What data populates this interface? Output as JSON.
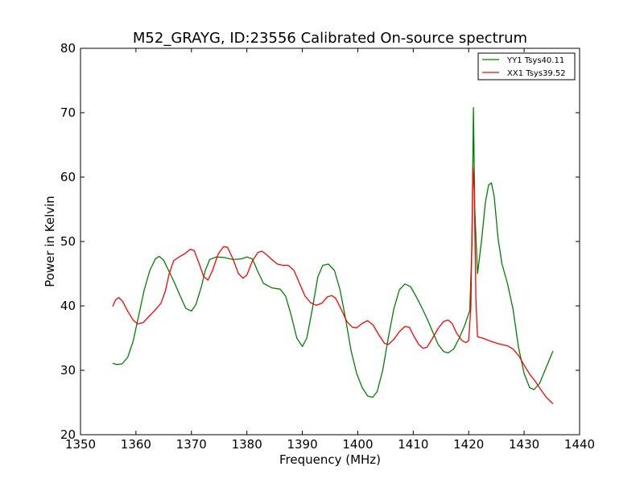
{
  "chart_data": {
    "type": "line",
    "title": "M52_GRAYG, ID:23556 Calibrated On-source spectrum",
    "xlabel": "Frequency (MHz)",
    "ylabel": "Power in Kelvin",
    "xlim": [
      1350,
      1440
    ],
    "ylim": [
      20,
      80
    ],
    "xticks": [
      "1350",
      "1360",
      "1370",
      "1380",
      "1390",
      "1400",
      "1410",
      "1420",
      "1430",
      "1440"
    ],
    "yticks": [
      "20",
      "30",
      "40",
      "50",
      "60",
      "70",
      "80"
    ],
    "grid": false,
    "legend_position": "top-right",
    "series": [
      {
        "name": "YY1 Tsys40.11",
        "color": "#008000",
        "points": [
          [
            1355.8,
            31.1
          ],
          [
            1356.5,
            30.9
          ],
          [
            1357.5,
            31.0
          ],
          [
            1358.5,
            32.0
          ],
          [
            1359.5,
            34.5
          ],
          [
            1360.5,
            38.5
          ],
          [
            1361.5,
            42.5
          ],
          [
            1362.5,
            45.5
          ],
          [
            1363.5,
            47.3
          ],
          [
            1364.2,
            47.7
          ],
          [
            1365.0,
            47.1
          ],
          [
            1366.0,
            45.3
          ],
          [
            1367.0,
            43.5
          ],
          [
            1368.0,
            41.5
          ],
          [
            1369.0,
            39.6
          ],
          [
            1370.0,
            39.2
          ],
          [
            1370.8,
            40.2
          ],
          [
            1371.8,
            43.0
          ],
          [
            1372.5,
            45.5
          ],
          [
            1373.3,
            47.2
          ],
          [
            1374.5,
            47.6
          ],
          [
            1376.0,
            47.5
          ],
          [
            1377.5,
            47.2
          ],
          [
            1379.0,
            47.3
          ],
          [
            1380.0,
            47.6
          ],
          [
            1381.0,
            47.3
          ],
          [
            1382.0,
            45.3
          ],
          [
            1383.0,
            43.5
          ],
          [
            1384.5,
            42.8
          ],
          [
            1386.0,
            42.6
          ],
          [
            1387.0,
            41.5
          ],
          [
            1388.0,
            38.5
          ],
          [
            1389.0,
            35.0
          ],
          [
            1390.0,
            33.7
          ],
          [
            1390.8,
            35.0
          ],
          [
            1391.8,
            39.5
          ],
          [
            1392.8,
            44.5
          ],
          [
            1393.7,
            46.3
          ],
          [
            1394.7,
            46.5
          ],
          [
            1395.8,
            45.5
          ],
          [
            1396.8,
            42.5
          ],
          [
            1397.8,
            38.0
          ],
          [
            1398.8,
            33.0
          ],
          [
            1399.8,
            29.5
          ],
          [
            1400.8,
            27.3
          ],
          [
            1401.8,
            26.0
          ],
          [
            1402.7,
            25.8
          ],
          [
            1403.5,
            26.7
          ],
          [
            1404.5,
            30.0
          ],
          [
            1405.5,
            35.0
          ],
          [
            1406.5,
            39.5
          ],
          [
            1407.5,
            42.5
          ],
          [
            1408.5,
            43.4
          ],
          [
            1409.5,
            43.0
          ],
          [
            1410.5,
            41.5
          ],
          [
            1411.5,
            39.8
          ],
          [
            1412.5,
            38.0
          ],
          [
            1413.5,
            36.0
          ],
          [
            1414.5,
            34.0
          ],
          [
            1415.5,
            32.9
          ],
          [
            1416.3,
            32.7
          ],
          [
            1417.3,
            33.3
          ],
          [
            1418.3,
            35.0
          ],
          [
            1419.3,
            37.0
          ],
          [
            1420.2,
            39.3
          ],
          [
            1420.6,
            50.0
          ],
          [
            1420.85,
            70.8
          ],
          [
            1421.1,
            55.0
          ],
          [
            1421.6,
            45.0
          ],
          [
            1422.3,
            50.0
          ],
          [
            1423.0,
            56.0
          ],
          [
            1423.6,
            58.8
          ],
          [
            1424.1,
            59.1
          ],
          [
            1424.6,
            57.0
          ],
          [
            1425.3,
            50.5
          ],
          [
            1426.0,
            46.5
          ],
          [
            1427.0,
            43.5
          ],
          [
            1428.0,
            39.5
          ],
          [
            1429.0,
            33.5
          ],
          [
            1430.0,
            29.5
          ],
          [
            1431.0,
            27.3
          ],
          [
            1431.8,
            27.0
          ],
          [
            1432.8,
            28.0
          ],
          [
            1434.0,
            30.5
          ],
          [
            1435.2,
            33.0
          ]
        ]
      },
      {
        "name": "XX1 Tsys39.52",
        "color": "#ff0000",
        "points": [
          [
            1355.8,
            39.9
          ],
          [
            1356.3,
            40.9
          ],
          [
            1356.9,
            41.3
          ],
          [
            1357.6,
            40.7
          ],
          [
            1358.5,
            39.2
          ],
          [
            1359.5,
            37.8
          ],
          [
            1360.3,
            37.2
          ],
          [
            1361.3,
            37.4
          ],
          [
            1362.5,
            38.5
          ],
          [
            1363.5,
            39.4
          ],
          [
            1364.5,
            40.4
          ],
          [
            1365.3,
            42.3
          ],
          [
            1366.0,
            45.0
          ],
          [
            1366.8,
            47.0
          ],
          [
            1367.8,
            47.6
          ],
          [
            1368.8,
            48.1
          ],
          [
            1369.8,
            48.8
          ],
          [
            1370.5,
            48.6
          ],
          [
            1371.3,
            46.8
          ],
          [
            1372.2,
            44.6
          ],
          [
            1373.0,
            44.0
          ],
          [
            1373.8,
            45.5
          ],
          [
            1374.8,
            48.0
          ],
          [
            1375.8,
            49.2
          ],
          [
            1376.5,
            49.1
          ],
          [
            1377.5,
            47.3
          ],
          [
            1378.5,
            45.0
          ],
          [
            1379.3,
            44.3
          ],
          [
            1380.0,
            44.8
          ],
          [
            1381.0,
            47.0
          ],
          [
            1382.0,
            48.3
          ],
          [
            1382.7,
            48.5
          ],
          [
            1383.5,
            48.0
          ],
          [
            1384.5,
            47.2
          ],
          [
            1385.5,
            46.5
          ],
          [
            1386.5,
            46.3
          ],
          [
            1387.5,
            46.3
          ],
          [
            1388.5,
            45.5
          ],
          [
            1389.5,
            43.5
          ],
          [
            1390.5,
            41.5
          ],
          [
            1391.5,
            40.5
          ],
          [
            1392.5,
            40.1
          ],
          [
            1393.5,
            40.4
          ],
          [
            1394.5,
            41.4
          ],
          [
            1395.3,
            41.6
          ],
          [
            1396.0,
            41.2
          ],
          [
            1397.0,
            39.5
          ],
          [
            1398.0,
            37.6
          ],
          [
            1399.0,
            36.7
          ],
          [
            1399.8,
            36.6
          ],
          [
            1400.8,
            37.3
          ],
          [
            1401.8,
            37.7
          ],
          [
            1402.8,
            37.0
          ],
          [
            1403.8,
            35.5
          ],
          [
            1404.8,
            34.2
          ],
          [
            1405.5,
            34.0
          ],
          [
            1406.5,
            34.8
          ],
          [
            1407.5,
            36.0
          ],
          [
            1408.5,
            36.8
          ],
          [
            1409.3,
            36.7
          ],
          [
            1410.0,
            35.5
          ],
          [
            1411.0,
            34.0
          ],
          [
            1411.8,
            33.4
          ],
          [
            1412.5,
            33.6
          ],
          [
            1413.5,
            35.0
          ],
          [
            1414.5,
            36.5
          ],
          [
            1415.5,
            37.6
          ],
          [
            1416.3,
            37.8
          ],
          [
            1417.0,
            37.3
          ],
          [
            1417.8,
            35.8
          ],
          [
            1418.8,
            34.6
          ],
          [
            1419.5,
            34.3
          ],
          [
            1420.0,
            34.6
          ],
          [
            1420.4,
            40.0
          ],
          [
            1420.75,
            61.5
          ],
          [
            1421.0,
            58.0
          ],
          [
            1421.3,
            41.0
          ],
          [
            1421.6,
            35.2
          ],
          [
            1422.5,
            35.0
          ],
          [
            1424.0,
            34.5
          ],
          [
            1425.5,
            34.1
          ],
          [
            1427.0,
            33.8
          ],
          [
            1428.0,
            33.3
          ],
          [
            1429.0,
            32.3
          ],
          [
            1430.0,
            30.8
          ],
          [
            1431.0,
            29.4
          ],
          [
            1432.0,
            28.3
          ],
          [
            1433.0,
            27.0
          ],
          [
            1434.0,
            25.8
          ],
          [
            1435.2,
            24.8
          ]
        ]
      }
    ]
  }
}
